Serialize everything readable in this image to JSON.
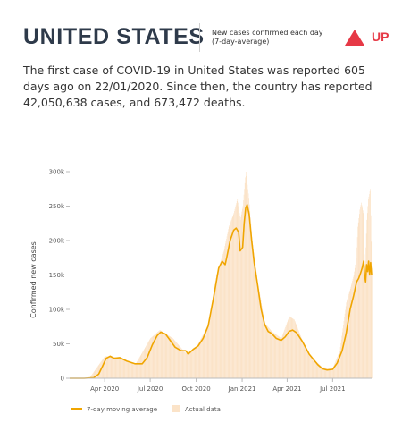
{
  "header": {
    "country": "UNITED STATES",
    "subtitle_line1": "New cases confirmed each day",
    "subtitle_line2": "(7-day-average)",
    "trend_label": "UP",
    "trend_icon": "triangle-up-icon"
  },
  "summary": "The first case of COVID-19 in United States was reported 605 days ago on 22/01/2020. Since then, the country has reported 42,050,638 cases, and 673,472 deaths.",
  "colors": {
    "line": "#f0a500",
    "bars": "#fbe3c8",
    "trend": "#e63946"
  },
  "chart_data": {
    "type": "line",
    "title": "",
    "xlabel": "",
    "ylabel": "Confirmed new cases",
    "ylim": [
      0,
      300000
    ],
    "xlim": [
      "2020-01-22",
      "2021-09-17"
    ],
    "y_ticks": [
      0,
      50000,
      100000,
      150000,
      200000,
      250000,
      300000
    ],
    "y_tick_labels": [
      "0",
      "50k",
      "100k",
      "150k",
      "200k",
      "250k",
      "300k"
    ],
    "x_ticks": [
      "2020-04-01",
      "2020-07-01",
      "2020-10-01",
      "2021-01-01",
      "2021-04-01",
      "2021-07-01"
    ],
    "x_tick_labels": [
      "Apr 2020",
      "Jul 2020",
      "Oct 2020",
      "Jan 2021",
      "Apr 2021",
      "Jul 2021"
    ],
    "grid": false,
    "legend_position": "bottom-left",
    "series": [
      {
        "name": "7-day moving average",
        "x": [
          "2020-01-22",
          "2020-02-20",
          "2020-03-10",
          "2020-03-20",
          "2020-03-28",
          "2020-04-04",
          "2020-04-12",
          "2020-04-20",
          "2020-05-01",
          "2020-05-15",
          "2020-06-01",
          "2020-06-15",
          "2020-06-25",
          "2020-07-05",
          "2020-07-15",
          "2020-07-22",
          "2020-08-01",
          "2020-08-10",
          "2020-08-20",
          "2020-09-01",
          "2020-09-10",
          "2020-09-15",
          "2020-09-25",
          "2020-10-05",
          "2020-10-15",
          "2020-10-25",
          "2020-11-05",
          "2020-11-15",
          "2020-11-22",
          "2020-11-28",
          "2020-12-01",
          "2020-12-08",
          "2020-12-15",
          "2020-12-20",
          "2020-12-25",
          "2020-12-28",
          "2021-01-02",
          "2021-01-05",
          "2021-01-08",
          "2021-01-11",
          "2021-01-15",
          "2021-01-20",
          "2021-01-25",
          "2021-02-01",
          "2021-02-08",
          "2021-02-15",
          "2021-02-22",
          "2021-03-01",
          "2021-03-10",
          "2021-03-20",
          "2021-03-28",
          "2021-04-05",
          "2021-04-12",
          "2021-04-20",
          "2021-05-01",
          "2021-05-15",
          "2021-06-01",
          "2021-06-10",
          "2021-06-20",
          "2021-07-01",
          "2021-07-10",
          "2021-07-20",
          "2021-07-28",
          "2021-08-05",
          "2021-08-12",
          "2021-08-18",
          "2021-08-22",
          "2021-08-26",
          "2021-08-29",
          "2021-09-01",
          "2021-09-03",
          "2021-09-05",
          "2021-09-07",
          "2021-09-09",
          "2021-09-11",
          "2021-09-13",
          "2021-09-15",
          "2021-09-17"
        ],
        "values": [
          0,
          0,
          800,
          6000,
          18000,
          29000,
          32000,
          29000,
          30000,
          25000,
          21000,
          21000,
          30000,
          48000,
          62000,
          67000,
          64000,
          55000,
          45000,
          40000,
          40000,
          35000,
          42000,
          47000,
          58000,
          76000,
          118000,
          160000,
          170000,
          165000,
          175000,
          200000,
          215000,
          218000,
          212000,
          185000,
          190000,
          225000,
          247000,
          252000,
          238000,
          200000,
          168000,
          135000,
          100000,
          78000,
          68000,
          65000,
          58000,
          55000,
          60000,
          68000,
          70000,
          66000,
          54000,
          35000,
          20000,
          14000,
          12000,
          13000,
          22000,
          40000,
          65000,
          100000,
          120000,
          140000,
          145000,
          153000,
          160000,
          170000,
          150000,
          140000,
          165000,
          155000,
          170000,
          150000,
          168000,
          150000
        ]
      },
      {
        "name": "Actual data",
        "x": [
          "2020-02-01",
          "2020-03-01",
          "2020-04-01",
          "2020-05-01",
          "2020-06-01",
          "2020-07-01",
          "2020-07-20",
          "2020-08-15",
          "2020-09-10",
          "2020-10-01",
          "2020-10-25",
          "2020-11-10",
          "2020-11-25",
          "2020-12-05",
          "2020-12-15",
          "2020-12-22",
          "2020-12-28",
          "2021-01-02",
          "2021-01-08",
          "2021-01-14",
          "2021-01-20",
          "2021-02-01",
          "2021-02-15",
          "2021-03-01",
          "2021-03-20",
          "2021-04-05",
          "2021-04-15",
          "2021-05-01",
          "2021-05-20",
          "2021-06-10",
          "2021-07-01",
          "2021-07-15",
          "2021-07-28",
          "2021-08-05",
          "2021-08-12",
          "2021-08-17",
          "2021-08-20",
          "2021-08-24",
          "2021-08-27",
          "2021-08-31",
          "2021-09-03",
          "2021-09-07",
          "2021-09-10",
          "2021-09-14",
          "2021-09-17"
        ],
        "values": [
          0,
          200,
          32000,
          30000,
          20000,
          58000,
          70000,
          58000,
          36000,
          45000,
          78000,
          150000,
          185000,
          220000,
          240000,
          260000,
          230000,
          250000,
          300000,
          262000,
          205000,
          138000,
          80000,
          68000,
          58000,
          90000,
          85000,
          55000,
          30000,
          16000,
          15000,
          40000,
          110000,
          130000,
          150000,
          175000,
          220000,
          245000,
          255000,
          240000,
          150000,
          230000,
          260000,
          275000,
          160000
        ]
      }
    ]
  }
}
